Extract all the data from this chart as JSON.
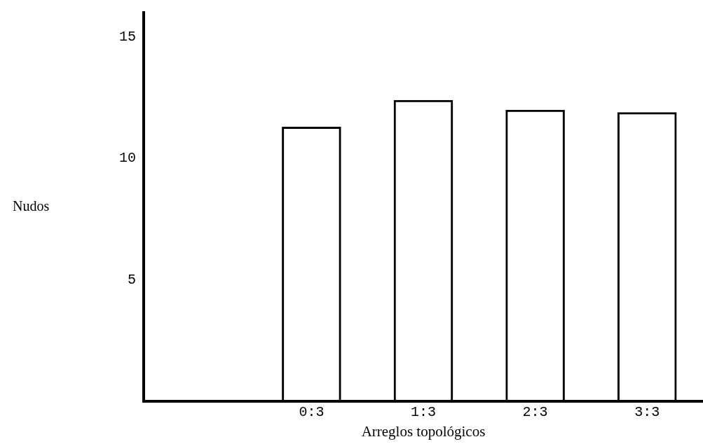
{
  "chart_data": {
    "type": "bar",
    "xlabel": "Arreglos topológicos",
    "ylabel": "Nudos",
    "categories": [
      null,
      "0:3",
      "1:3",
      "2:3",
      "3:3"
    ],
    "values": [
      null,
      11.3,
      12.4,
      12.0,
      11.9
    ],
    "color": "#000000",
    "ylim": [
      0,
      16
    ],
    "yticks": [
      5,
      10,
      15
    ],
    "grid": false,
    "legend": false
  }
}
